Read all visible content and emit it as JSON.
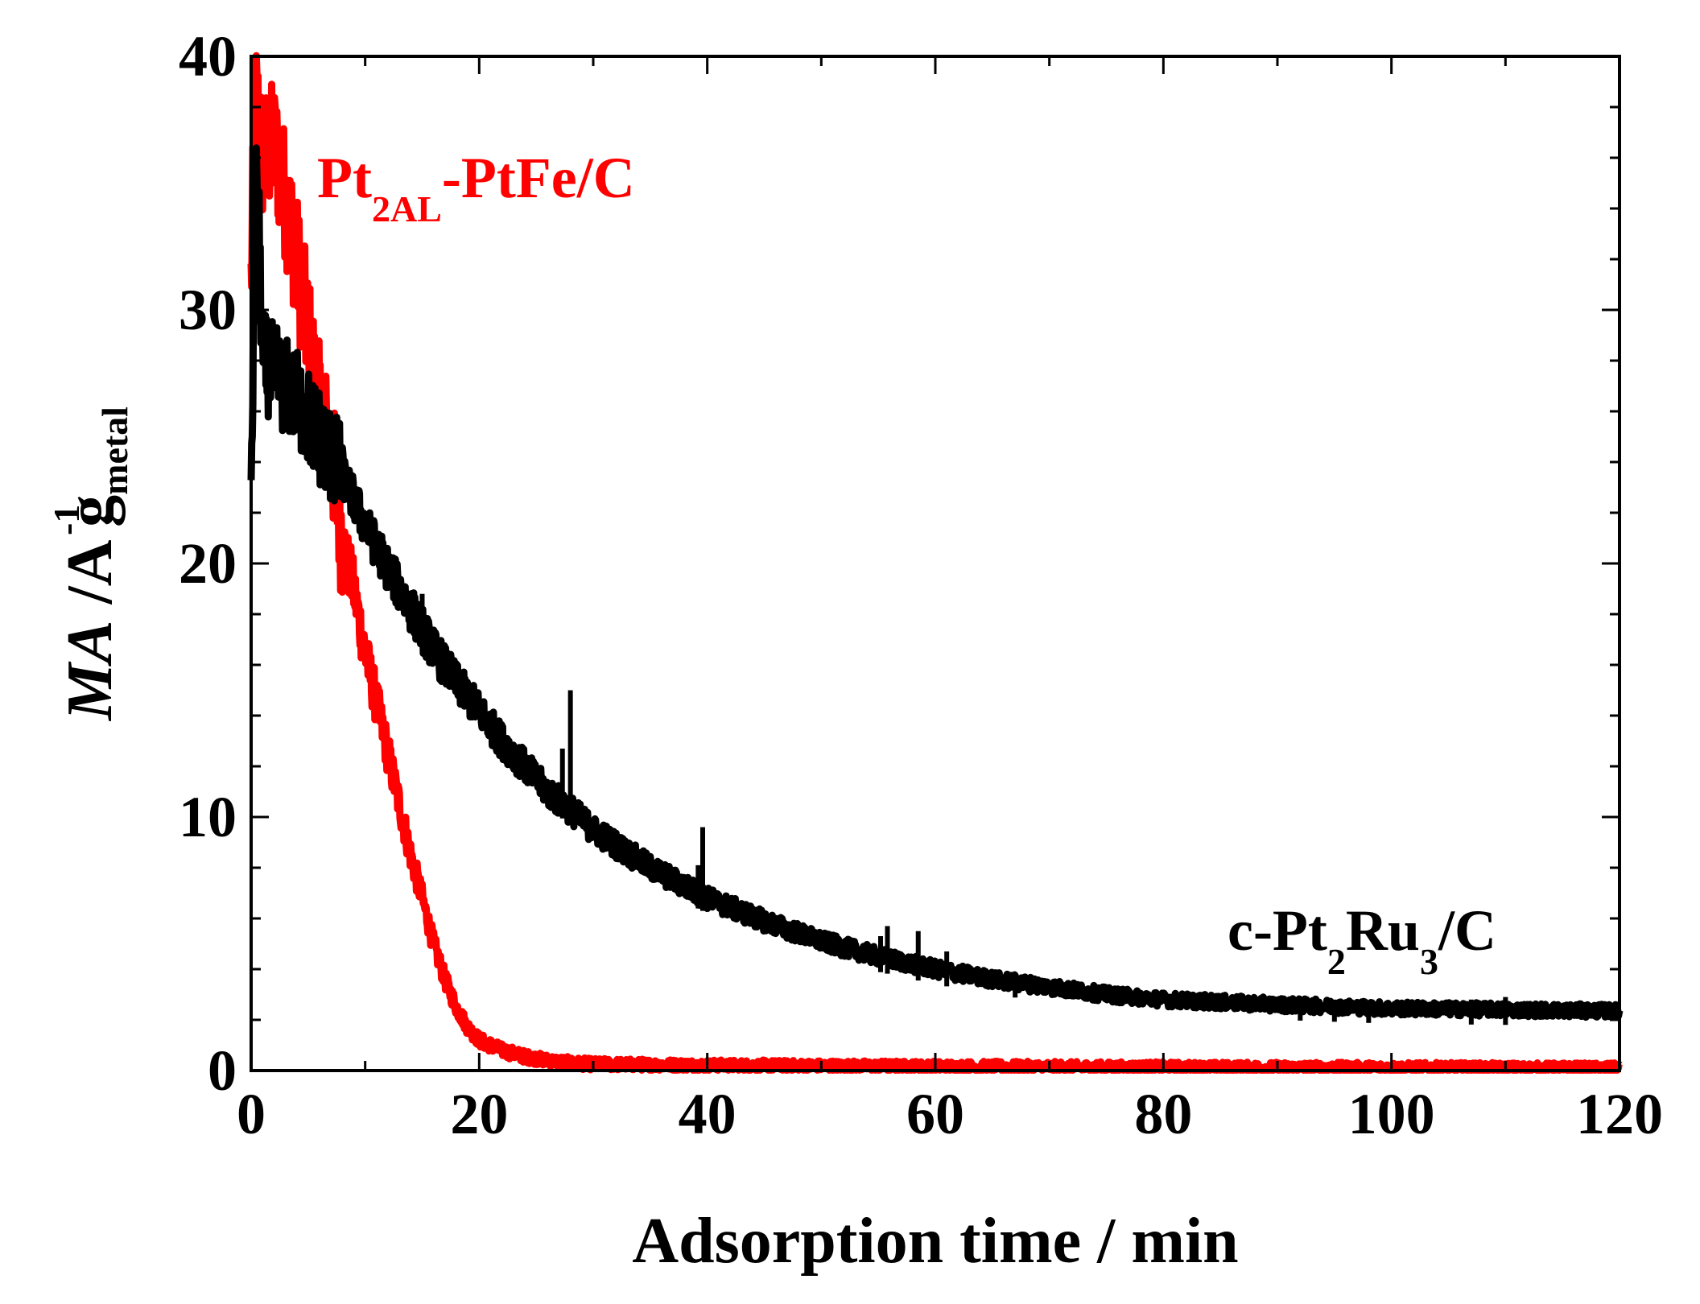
{
  "chart_data": {
    "type": "line",
    "xlabel": "Adsorption time / min",
    "ylabel": {
      "main": "MA",
      "sep": " /A g",
      "unit_sub": "metal",
      "unit_sup": "-1"
    },
    "xlim": [
      0,
      120
    ],
    "ylim": [
      0,
      40
    ],
    "x_ticks": [
      0,
      20,
      40,
      60,
      80,
      100,
      120
    ],
    "y_ticks": [
      0,
      10,
      20,
      30,
      40
    ],
    "grid": false,
    "series": [
      {
        "name": "Pt2AL-PtFe/C",
        "label_parts": [
          "Pt",
          "2AL",
          "-PtFe/C"
        ],
        "color": "#ff0000",
        "noise": 1.2,
        "points": [
          [
            0.0,
            31.0
          ],
          [
            0.4,
            38.5
          ],
          [
            1.0,
            36.0
          ],
          [
            2.0,
            36.5
          ],
          [
            3.0,
            34.5
          ],
          [
            4.0,
            32.0
          ],
          [
            5.0,
            29.0
          ],
          [
            6.0,
            26.0
          ],
          [
            7.0,
            24.5
          ],
          [
            8.0,
            21.0
          ],
          [
            9.0,
            19.0
          ],
          [
            10.0,
            16.5
          ],
          [
            11.0,
            14.5
          ],
          [
            12.0,
            12.5
          ],
          [
            13.0,
            10.5
          ],
          [
            14.0,
            8.5
          ],
          [
            15.0,
            6.8
          ],
          [
            16.0,
            5.0
          ],
          [
            17.0,
            3.6
          ],
          [
            18.0,
            2.5
          ],
          [
            19.0,
            1.7
          ],
          [
            20.0,
            1.2
          ],
          [
            22.0,
            0.8
          ],
          [
            24.0,
            0.55
          ],
          [
            26.0,
            0.4
          ],
          [
            28.0,
            0.3
          ],
          [
            30.0,
            0.25
          ],
          [
            40.0,
            0.2
          ],
          [
            60.0,
            0.15
          ],
          [
            80.0,
            0.12
          ],
          [
            100.0,
            0.1
          ],
          [
            120.0,
            0.08
          ]
        ]
      },
      {
        "name": "c-Pt2Ru3/C",
        "label_parts": [
          "c-Pt",
          "2",
          "Ru",
          "3",
          "/C"
        ],
        "color": "#000000",
        "noise": 0.9,
        "points": [
          [
            0.0,
            23.5
          ],
          [
            0.5,
            36.0
          ],
          [
            1.0,
            28.0
          ],
          [
            2.0,
            27.5
          ],
          [
            4.0,
            26.5
          ],
          [
            6.0,
            25.0
          ],
          [
            8.0,
            23.5
          ],
          [
            10.0,
            21.5
          ],
          [
            12.0,
            19.8
          ],
          [
            14.0,
            18.2
          ],
          [
            16.0,
            16.6
          ],
          [
            18.0,
            15.3
          ],
          [
            20.0,
            14.2
          ],
          [
            22.0,
            13.0
          ],
          [
            24.0,
            12.0
          ],
          [
            26.0,
            11.0
          ],
          [
            28.0,
            10.3
          ],
          [
            30.0,
            9.5
          ],
          [
            35.0,
            8.0
          ],
          [
            40.0,
            6.8
          ],
          [
            45.0,
            5.9
          ],
          [
            50.0,
            5.1
          ],
          [
            55.0,
            4.5
          ],
          [
            60.0,
            4.0
          ],
          [
            65.0,
            3.6
          ],
          [
            70.0,
            3.3
          ],
          [
            75.0,
            3.0
          ],
          [
            80.0,
            2.8
          ],
          [
            90.0,
            2.6
          ],
          [
            100.0,
            2.45
          ],
          [
            110.0,
            2.4
          ],
          [
            120.0,
            2.35
          ]
        ],
        "spikes": [
          [
            15.0,
            18.8
          ],
          [
            27.3,
            12.7
          ],
          [
            28.0,
            15.0
          ],
          [
            39.2,
            8.1
          ],
          [
            39.6,
            9.6
          ],
          [
            55.2,
            5.3
          ],
          [
            55.8,
            5.7
          ],
          [
            58.5,
            5.5
          ],
          [
            61.0,
            4.7
          ],
          [
            67.0,
            3.8
          ],
          [
            92.0,
            2.9
          ],
          [
            95.0,
            2.8
          ],
          [
            98.0,
            2.7
          ],
          [
            107.0,
            2.8
          ],
          [
            110.0,
            2.9
          ]
        ]
      }
    ]
  }
}
